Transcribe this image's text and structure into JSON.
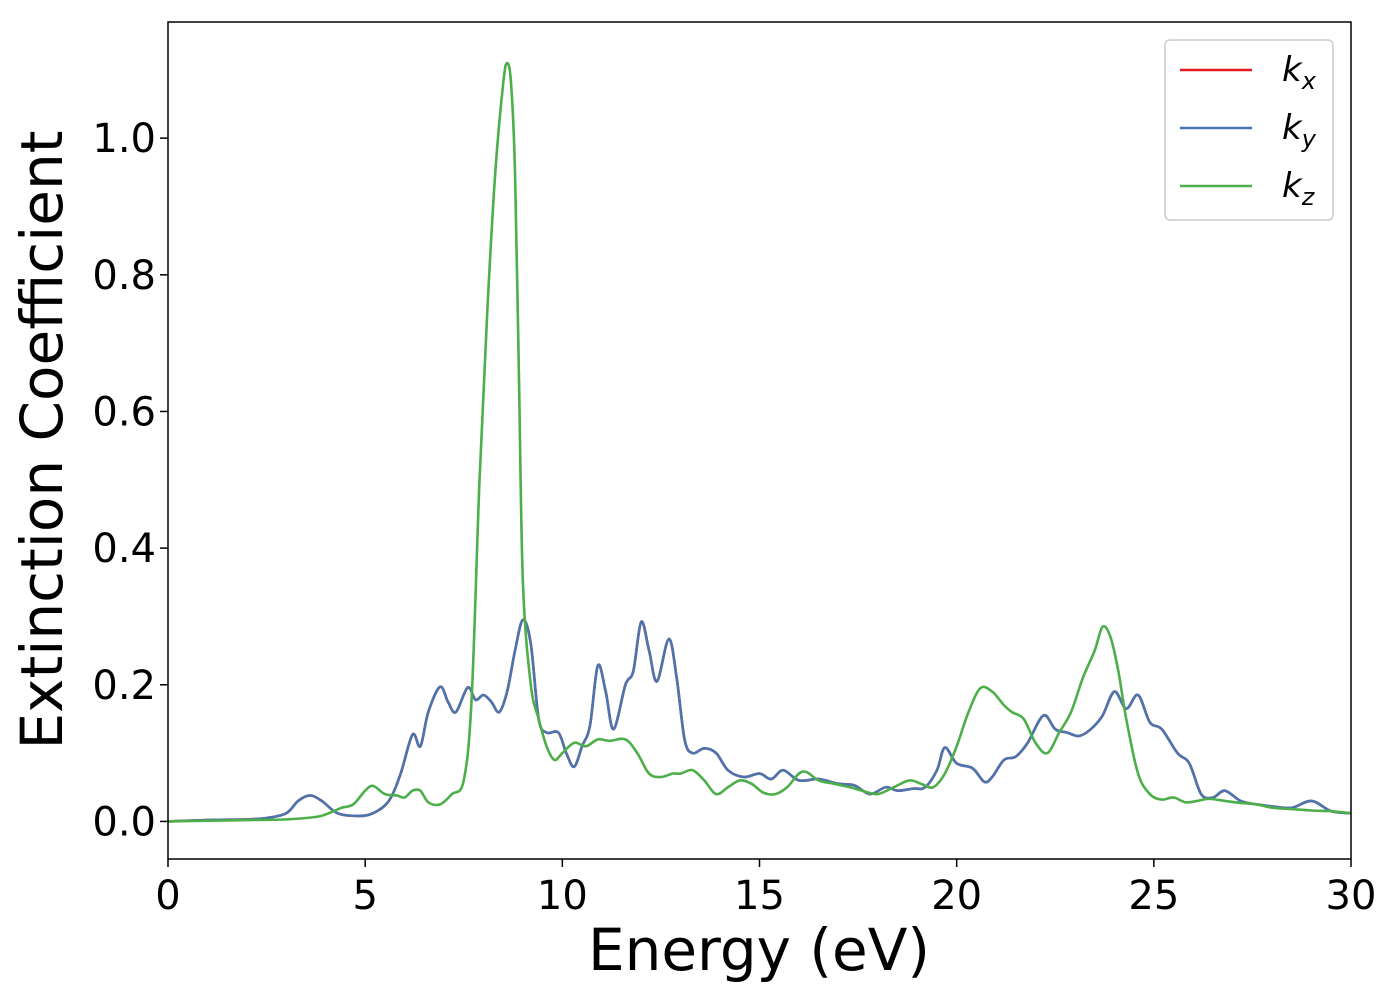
{
  "chart_data": {
    "type": "line",
    "title": "",
    "xlabel": "Energy (eV)",
    "ylabel": "Extinction Coefficient",
    "xlim": [
      0,
      30
    ],
    "ylim": [
      -0.055,
      1.17
    ],
    "xticks": [
      "0",
      "5",
      "10",
      "15",
      "20",
      "25",
      "30"
    ],
    "yticks": [
      "0.0",
      "0.2",
      "0.4",
      "0.6",
      "0.8",
      "1.0"
    ],
    "grid": false,
    "legend_position": "top-right",
    "series": [
      {
        "name": "k_x",
        "label_main": "k",
        "label_sub": "x",
        "color": "#e41a1c",
        "x": [
          0,
          1,
          2,
          2.5,
          3,
          3.3,
          3.6,
          3.9,
          4.3,
          4.8,
          5.2,
          5.6,
          5.9,
          6.2,
          6.4,
          6.6,
          6.9,
          7.1,
          7.3,
          7.6,
          7.8,
          8.0,
          8.2,
          8.4,
          8.6,
          8.8,
          9.0,
          9.2,
          9.4,
          9.6,
          9.9,
          10.1,
          10.3,
          10.5,
          10.7,
          10.9,
          11.1,
          11.3,
          11.6,
          11.8,
          12.0,
          12.2,
          12.4,
          12.7,
          12.9,
          13.1,
          13.3,
          13.6,
          13.9,
          14.2,
          14.6,
          15.0,
          15.3,
          15.6,
          16.0,
          16.5,
          17.0,
          17.4,
          17.8,
          18.2,
          18.5,
          18.9,
          19.2,
          19.5,
          19.7,
          20.0,
          20.4,
          20.7,
          20.9,
          21.2,
          21.5,
          21.8,
          22.2,
          22.5,
          22.8,
          23.1,
          23.4,
          23.7,
          24.0,
          24.3,
          24.6,
          24.9,
          25.2,
          25.6,
          25.9,
          26.2,
          26.5,
          26.8,
          27.2,
          27.6,
          28.0,
          28.5,
          29.0,
          29.5,
          30
        ],
        "y": [
          0,
          0.002,
          0.003,
          0.005,
          0.012,
          0.03,
          0.038,
          0.03,
          0.012,
          0.008,
          0.012,
          0.03,
          0.07,
          0.127,
          0.11,
          0.16,
          0.197,
          0.175,
          0.16,
          0.196,
          0.178,
          0.185,
          0.175,
          0.16,
          0.19,
          0.25,
          0.295,
          0.26,
          0.15,
          0.13,
          0.13,
          0.1,
          0.08,
          0.11,
          0.14,
          0.228,
          0.19,
          0.135,
          0.2,
          0.22,
          0.292,
          0.25,
          0.205,
          0.267,
          0.21,
          0.12,
          0.1,
          0.107,
          0.1,
          0.075,
          0.065,
          0.07,
          0.062,
          0.075,
          0.06,
          0.062,
          0.055,
          0.053,
          0.04,
          0.05,
          0.045,
          0.048,
          0.05,
          0.075,
          0.108,
          0.085,
          0.078,
          0.058,
          0.065,
          0.09,
          0.095,
          0.115,
          0.155,
          0.135,
          0.13,
          0.125,
          0.135,
          0.155,
          0.19,
          0.165,
          0.185,
          0.145,
          0.135,
          0.1,
          0.085,
          0.04,
          0.035,
          0.045,
          0.03,
          0.025,
          0.022,
          0.02,
          0.03,
          0.015,
          0.012
        ]
      },
      {
        "name": "k_y",
        "label_main": "k",
        "label_sub": "y",
        "color": "#4a75ae",
        "x": [
          0,
          1,
          2,
          2.5,
          3,
          3.3,
          3.6,
          3.9,
          4.3,
          4.8,
          5.2,
          5.6,
          5.9,
          6.2,
          6.4,
          6.6,
          6.9,
          7.1,
          7.3,
          7.6,
          7.8,
          8.0,
          8.2,
          8.4,
          8.6,
          8.8,
          9.0,
          9.2,
          9.4,
          9.6,
          9.9,
          10.1,
          10.3,
          10.5,
          10.7,
          10.9,
          11.1,
          11.3,
          11.6,
          11.8,
          12.0,
          12.2,
          12.4,
          12.7,
          12.9,
          13.1,
          13.3,
          13.6,
          13.9,
          14.2,
          14.6,
          15.0,
          15.3,
          15.6,
          16.0,
          16.5,
          17.0,
          17.4,
          17.8,
          18.2,
          18.5,
          18.9,
          19.2,
          19.5,
          19.7,
          20.0,
          20.4,
          20.7,
          20.9,
          21.2,
          21.5,
          21.8,
          22.2,
          22.5,
          22.8,
          23.1,
          23.4,
          23.7,
          24.0,
          24.3,
          24.6,
          24.9,
          25.2,
          25.6,
          25.9,
          26.2,
          26.5,
          26.8,
          27.2,
          27.6,
          28.0,
          28.5,
          29.0,
          29.5,
          30
        ],
        "y": [
          0,
          0.002,
          0.003,
          0.005,
          0.012,
          0.03,
          0.038,
          0.03,
          0.012,
          0.008,
          0.012,
          0.03,
          0.07,
          0.127,
          0.11,
          0.16,
          0.197,
          0.175,
          0.16,
          0.196,
          0.178,
          0.185,
          0.175,
          0.16,
          0.19,
          0.25,
          0.295,
          0.26,
          0.15,
          0.13,
          0.13,
          0.1,
          0.08,
          0.11,
          0.14,
          0.228,
          0.19,
          0.135,
          0.2,
          0.22,
          0.292,
          0.25,
          0.205,
          0.267,
          0.21,
          0.12,
          0.1,
          0.107,
          0.1,
          0.075,
          0.065,
          0.07,
          0.062,
          0.075,
          0.06,
          0.062,
          0.055,
          0.053,
          0.04,
          0.05,
          0.045,
          0.048,
          0.05,
          0.075,
          0.108,
          0.085,
          0.078,
          0.058,
          0.065,
          0.09,
          0.095,
          0.115,
          0.155,
          0.135,
          0.13,
          0.125,
          0.135,
          0.155,
          0.19,
          0.165,
          0.185,
          0.145,
          0.135,
          0.1,
          0.085,
          0.04,
          0.035,
          0.045,
          0.03,
          0.025,
          0.022,
          0.02,
          0.03,
          0.015,
          0.012
        ]
      },
      {
        "name": "k_z",
        "label_main": "k",
        "label_sub": "z",
        "color": "#4daf4a",
        "x": [
          0,
          1,
          2,
          3,
          3.8,
          4.2,
          4.4,
          4.7,
          5.0,
          5.2,
          5.5,
          5.8,
          6.0,
          6.2,
          6.4,
          6.6,
          6.9,
          7.2,
          7.5,
          7.7,
          7.9,
          8.1,
          8.3,
          8.5,
          8.6,
          8.7,
          8.8,
          8.9,
          9.0,
          9.2,
          9.4,
          9.6,
          9.8,
          10.0,
          10.3,
          10.6,
          10.9,
          11.2,
          11.6,
          11.9,
          12.2,
          12.5,
          12.8,
          13.0,
          13.3,
          13.6,
          13.9,
          14.2,
          14.5,
          14.8,
          15.1,
          15.4,
          15.7,
          16.0,
          16.2,
          16.5,
          16.9,
          17.3,
          17.6,
          18.0,
          18.4,
          18.8,
          19.1,
          19.4,
          19.7,
          20.0,
          20.3,
          20.6,
          20.9,
          21.2,
          21.4,
          21.7,
          22.0,
          22.3,
          22.6,
          22.9,
          23.2,
          23.5,
          23.7,
          23.9,
          24.1,
          24.3,
          24.6,
          24.9,
          25.2,
          25.5,
          25.8,
          26.1,
          26.4,
          26.8,
          27.2,
          27.6,
          28.0,
          28.5,
          29.0,
          29.5,
          30
        ],
        "y": [
          0,
          0.001,
          0.002,
          0.003,
          0.007,
          0.015,
          0.02,
          0.025,
          0.045,
          0.052,
          0.04,
          0.038,
          0.035,
          0.045,
          0.045,
          0.028,
          0.025,
          0.04,
          0.06,
          0.18,
          0.5,
          0.75,
          0.95,
          1.08,
          1.11,
          1.08,
          0.95,
          0.65,
          0.35,
          0.2,
          0.15,
          0.11,
          0.09,
          0.1,
          0.115,
          0.11,
          0.12,
          0.118,
          0.12,
          0.1,
          0.07,
          0.065,
          0.07,
          0.07,
          0.075,
          0.06,
          0.04,
          0.05,
          0.06,
          0.055,
          0.042,
          0.04,
          0.05,
          0.07,
          0.072,
          0.06,
          0.055,
          0.05,
          0.045,
          0.04,
          0.05,
          0.06,
          0.055,
          0.05,
          0.07,
          0.11,
          0.16,
          0.195,
          0.19,
          0.17,
          0.16,
          0.15,
          0.115,
          0.1,
          0.13,
          0.16,
          0.21,
          0.25,
          0.285,
          0.27,
          0.22,
          0.15,
          0.07,
          0.04,
          0.032,
          0.035,
          0.028,
          0.03,
          0.033,
          0.03,
          0.027,
          0.025,
          0.02,
          0.018,
          0.016,
          0.015,
          0.012
        ]
      }
    ]
  }
}
